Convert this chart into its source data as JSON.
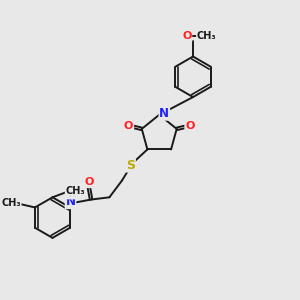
{
  "bg_color": "#e8e8e8",
  "bond_color": "#1a1a1a",
  "N_color": "#2020ff",
  "O_color": "#ff2020",
  "S_color": "#bbaa00",
  "H_color": "#3aacac",
  "C_color": "#1a1a1a",
  "figsize": [
    3.0,
    3.0
  ],
  "dpi": 100,
  "xlim": [
    0,
    10
  ],
  "ylim": [
    0,
    10
  ]
}
